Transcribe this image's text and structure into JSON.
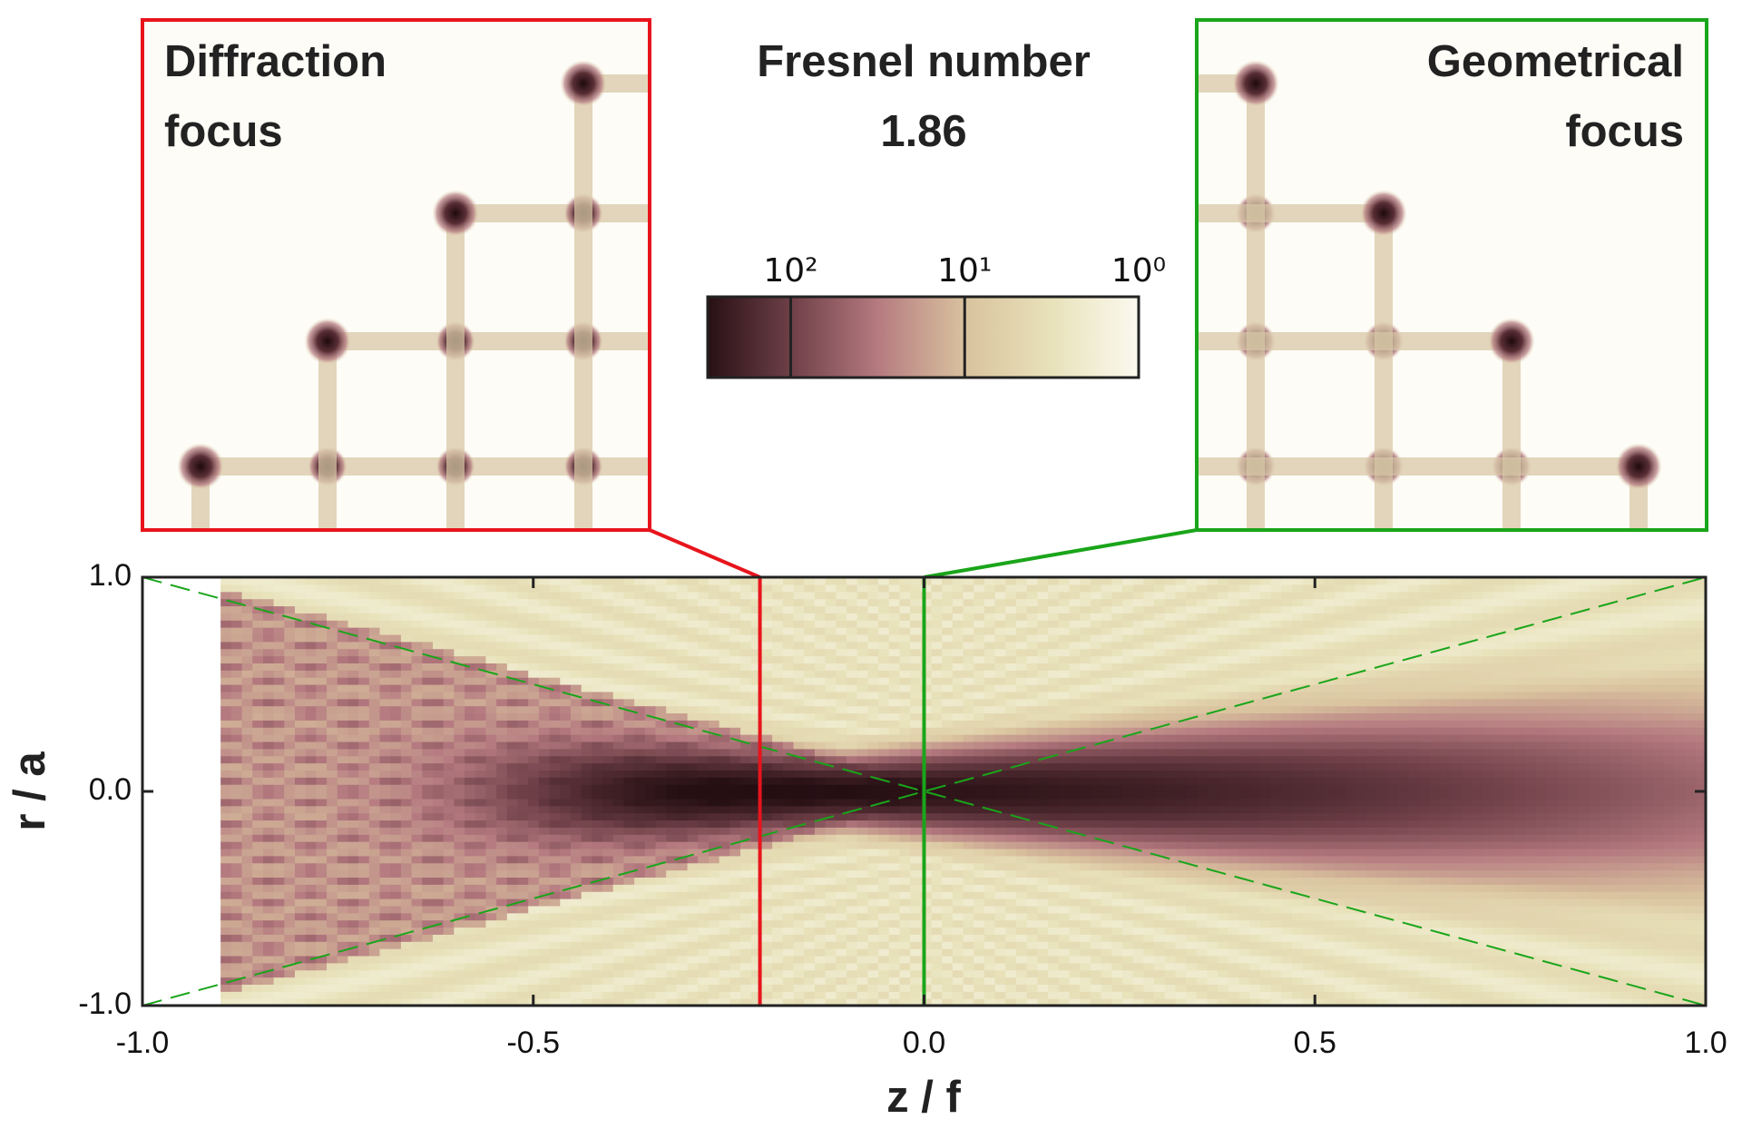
{
  "chart_data": {
    "type": "heatmap",
    "title": "Fresnel number",
    "subtitle": "1.86",
    "xlabel": "z / f",
    "ylabel": "r / a",
    "xlim": [
      -1,
      1
    ],
    "ylim": [
      -1,
      1
    ],
    "xticks": [
      {
        "value": -1,
        "label": "-1.0"
      },
      {
        "value": -0.5,
        "label": "-0.5"
      },
      {
        "value": 0,
        "label": "0.0"
      },
      {
        "value": 0.5,
        "label": "0.5"
      },
      {
        "value": 1,
        "label": "1.0"
      }
    ],
    "yticks": [
      {
        "value": -1,
        "label": "-1.0"
      },
      {
        "value": 0,
        "label": "0.0"
      },
      {
        "value": 1,
        "label": "1.0"
      }
    ],
    "colorbar": {
      "scale": "log",
      "lim": [
        300,
        1
      ],
      "ticks": [
        {
          "value": 100,
          "label": "10²"
        },
        {
          "value": 10,
          "label": "10¹"
        },
        {
          "value": 1,
          "label": "10⁰"
        }
      ]
    },
    "markers": [
      {
        "value": -0.21,
        "color": "#e8141c",
        "label": [
          "Diffraction",
          "focus"
        ]
      },
      {
        "value": 0,
        "color": "#1aa51a",
        "label": [
          "Geometrical",
          "focus"
        ]
      }
    ]
  }
}
